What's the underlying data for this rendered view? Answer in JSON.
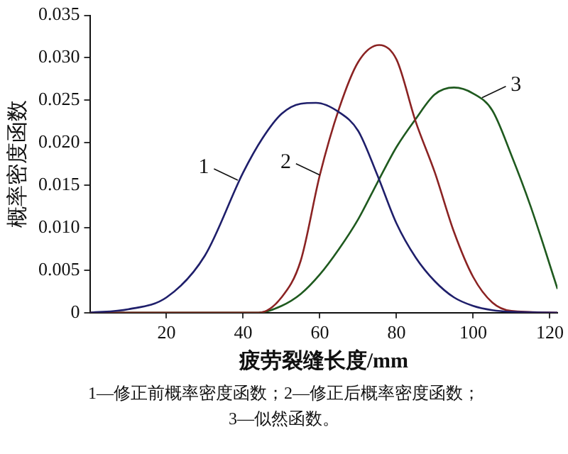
{
  "chart_data": {
    "type": "line",
    "xlabel": "疲劳裂缝长度/mm",
    "ylabel": "概率密度函数",
    "xlim": [
      0,
      122
    ],
    "xticks": [
      20,
      40,
      60,
      80,
      100,
      120
    ],
    "ylim": [
      0,
      0.035
    ],
    "yticks": [
      0,
      0.005,
      {
        "value": 0.01,
        "label": "0.010"
      },
      0.015,
      {
        "value": 0.02,
        "label": "0.020"
      },
      0.025,
      {
        "value": 0.03,
        "label": "0.030"
      },
      0.035
    ],
    "grid": false,
    "legend": false,
    "marker": "none",
    "line_style": "solid",
    "series": [
      {
        "color": "#1f1f6b",
        "x": [
          0,
          10,
          20,
          30,
          40,
          45,
          50,
          55,
          59,
          65,
          70,
          75,
          80,
          85,
          90,
          95,
          100,
          105,
          110,
          122
        ],
        "values": [
          0,
          0.0004,
          0.0018,
          0.0067,
          0.0165,
          0.0205,
          0.0234,
          0.0246,
          0.0247,
          0.0236,
          0.0214,
          0.0162,
          0.0105,
          0.0065,
          0.0037,
          0.0018,
          0.0008,
          0.0003,
          0.0001,
          0
        ]
      },
      {
        "color": "#8b2323",
        "x": [
          0,
          44,
          50,
          55,
          60,
          65,
          70,
          75.5,
          80,
          85,
          90,
          95,
          100,
          105,
          110,
          122
        ],
        "values": [
          0,
          0,
          0.0018,
          0.0061,
          0.0162,
          0.024,
          0.0295,
          0.0315,
          0.0298,
          0.0225,
          0.0165,
          0.0095,
          0.0042,
          0.0012,
          0.0002,
          0
        ]
      },
      {
        "color": "#1f5a1f",
        "x": [
          0,
          44,
          50,
          55,
          60,
          65,
          70,
          75,
          80,
          85,
          90,
          95,
          100,
          105,
          110,
          115,
          122
        ],
        "values": [
          0,
          0,
          0.0008,
          0.0022,
          0.0045,
          0.0075,
          0.011,
          0.0153,
          0.0195,
          0.0228,
          0.0257,
          0.0265,
          0.0258,
          0.0238,
          0.0185,
          0.0125,
          0.0028
        ]
      }
    ],
    "annotations": [
      {
        "text": "1",
        "x": 38.6,
        "y": 0.0156
      },
      {
        "text": "2",
        "x": 60,
        "y": 0.0162
      },
      {
        "text": "3",
        "x": 102.3,
        "y": 0.0253
      },
      "1—修正前概率密度函数；2—修正后概率密度函数；",
      "3—似然函数。"
    ]
  }
}
